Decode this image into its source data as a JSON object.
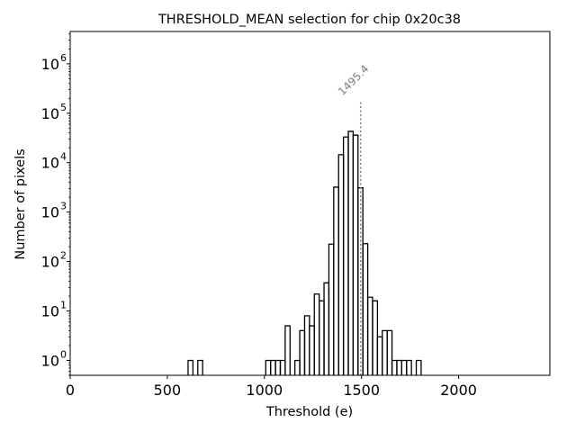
{
  "chart_data": {
    "type": "histogram",
    "title": "THRESHOLD_MEAN selection for chip 0x20c38",
    "xlabel": "Threshold (e)",
    "ylabel": "Number of pixels",
    "yscale": "log",
    "xlim": [
      0,
      2470
    ],
    "ylim": [
      0.5,
      4500000
    ],
    "xticks": [
      0,
      500,
      1000,
      1500,
      2000
    ],
    "xtick_labels": [
      "0",
      "500",
      "1000",
      "1500",
      "2000"
    ],
    "yticks": [
      {
        "value": 1,
        "base": "10",
        "exp": "0"
      },
      {
        "value": 10,
        "base": "10",
        "exp": "1"
      },
      {
        "value": 100,
        "base": "10",
        "exp": "2"
      },
      {
        "value": 1000,
        "base": "10",
        "exp": "3"
      },
      {
        "value": 10000,
        "base": "10",
        "exp": "4"
      },
      {
        "value": 100000,
        "base": "10",
        "exp": "5"
      },
      {
        "value": 1000000,
        "base": "10",
        "exp": "6"
      }
    ],
    "bins": [
      {
        "x0": 607,
        "x1": 632,
        "count": 1
      },
      {
        "x0": 657,
        "x1": 682,
        "count": 1
      },
      {
        "x0": 1007,
        "x1": 1032,
        "count": 1
      },
      {
        "x0": 1032,
        "x1": 1057,
        "count": 1
      },
      {
        "x0": 1057,
        "x1": 1082,
        "count": 1
      },
      {
        "x0": 1082,
        "x1": 1107,
        "count": 1
      },
      {
        "x0": 1107,
        "x1": 1132,
        "count": 5
      },
      {
        "x0": 1157,
        "x1": 1182,
        "count": 1
      },
      {
        "x0": 1182,
        "x1": 1207,
        "count": 4
      },
      {
        "x0": 1207,
        "x1": 1232,
        "count": 8
      },
      {
        "x0": 1232,
        "x1": 1257,
        "count": 5
      },
      {
        "x0": 1257,
        "x1": 1282,
        "count": 22
      },
      {
        "x0": 1282,
        "x1": 1307,
        "count": 16
      },
      {
        "x0": 1307,
        "x1": 1332,
        "count": 37
      },
      {
        "x0": 1332,
        "x1": 1357,
        "count": 225
      },
      {
        "x0": 1357,
        "x1": 1382,
        "count": 3200
      },
      {
        "x0": 1382,
        "x1": 1407,
        "count": 14500
      },
      {
        "x0": 1407,
        "x1": 1432,
        "count": 33000
      },
      {
        "x0": 1432,
        "x1": 1457,
        "count": 43000
      },
      {
        "x0": 1457,
        "x1": 1482,
        "count": 36000
      },
      {
        "x0": 1482,
        "x1": 1507,
        "count": 3100
      },
      {
        "x0": 1507,
        "x1": 1532,
        "count": 230
      },
      {
        "x0": 1532,
        "x1": 1557,
        "count": 19
      },
      {
        "x0": 1557,
        "x1": 1582,
        "count": 16
      },
      {
        "x0": 1582,
        "x1": 1607,
        "count": 3
      },
      {
        "x0": 1607,
        "x1": 1632,
        "count": 4
      },
      {
        "x0": 1632,
        "x1": 1657,
        "count": 4
      },
      {
        "x0": 1657,
        "x1": 1682,
        "count": 1
      },
      {
        "x0": 1682,
        "x1": 1707,
        "count": 1
      },
      {
        "x0": 1707,
        "x1": 1732,
        "count": 1
      },
      {
        "x0": 1732,
        "x1": 1757,
        "count": 1
      },
      {
        "x0": 1782,
        "x1": 1807,
        "count": 1
      }
    ],
    "annotation": {
      "x": 1495.4,
      "label": "1495.4",
      "y_top": 180000,
      "color": "#808080"
    },
    "grid": false,
    "legend": "none"
  }
}
